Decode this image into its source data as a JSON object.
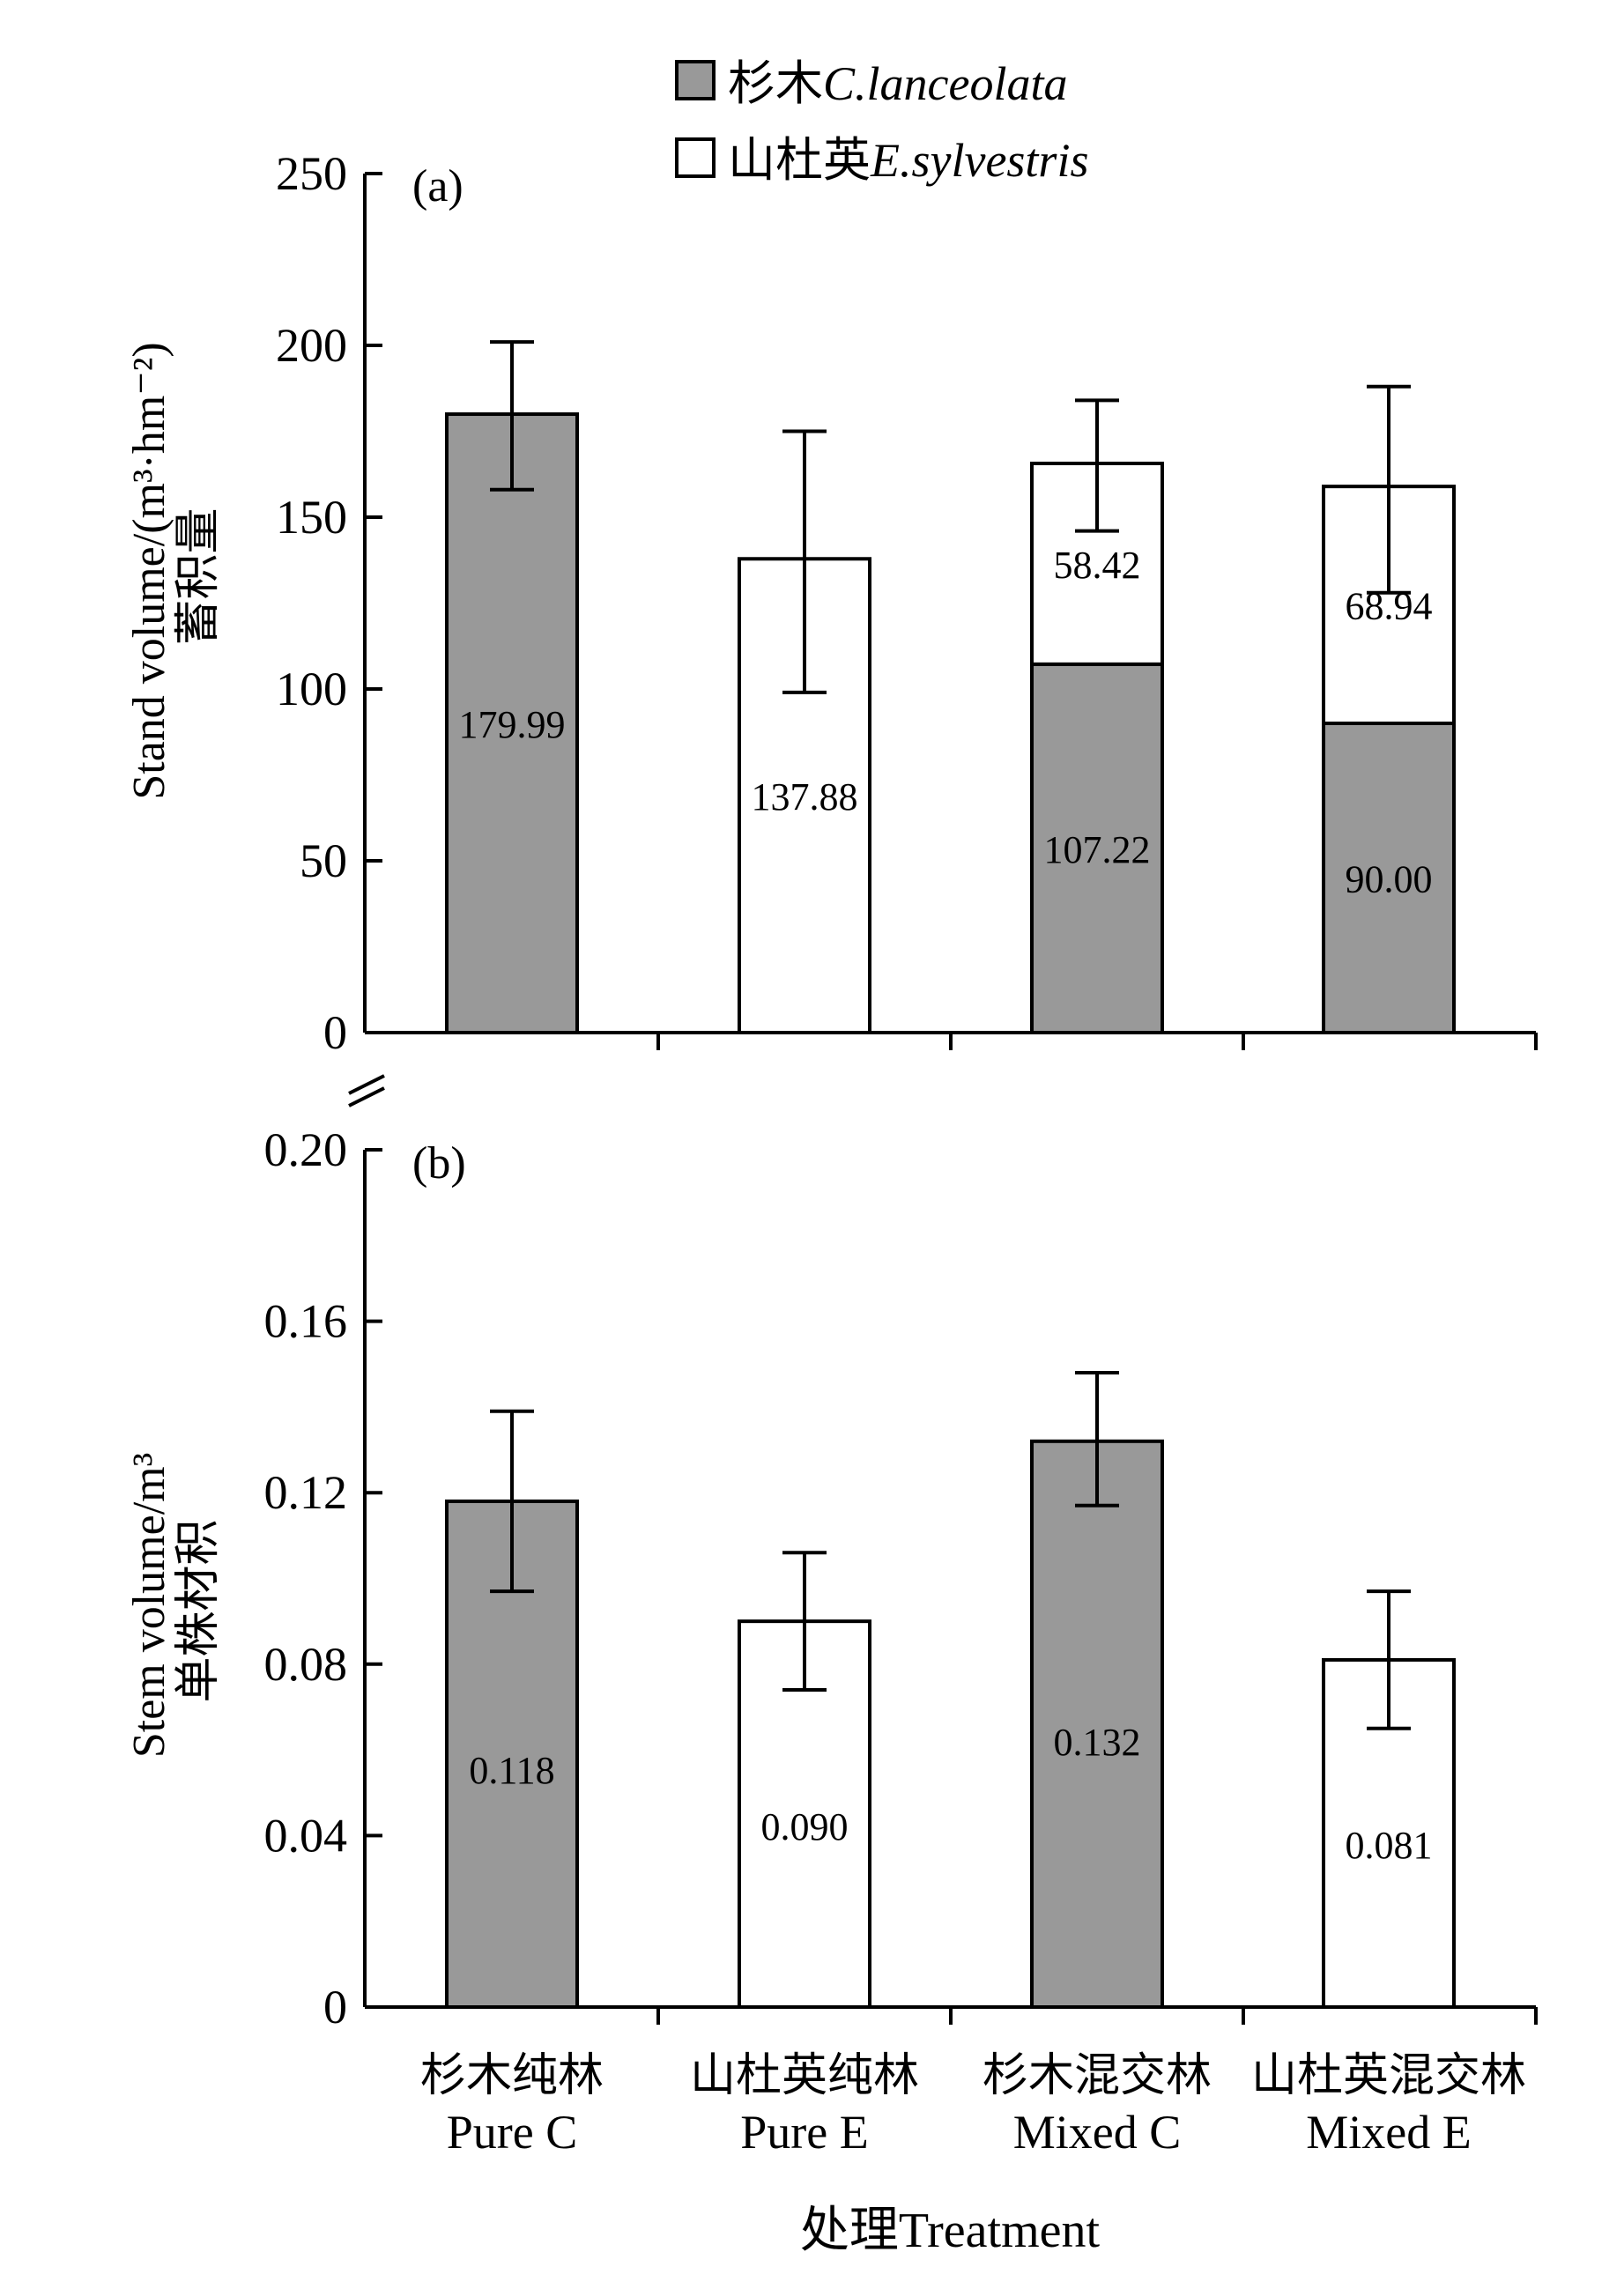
{
  "legend": {
    "items": [
      {
        "label_cn": "杉木",
        "label_latin": "C.lanceolata",
        "color": "#999999"
      },
      {
        "label_cn": "山杜英",
        "label_latin": "E.sylvestris",
        "color": "#ffffff"
      }
    ]
  },
  "xlabel": "处理Treatment",
  "treatments": [
    {
      "cn": "杉木纯林",
      "en": "Pure C"
    },
    {
      "cn": "山杜英纯林",
      "en": "Pure E"
    },
    {
      "cn": "杉木混交林",
      "en": "Mixed C"
    },
    {
      "cn": "山杜英混交林",
      "en": "Mixed E"
    }
  ],
  "chart_data": [
    {
      "type": "bar",
      "stacked": true,
      "panel_label": "(a)",
      "ylabel_cn": "蓄积量",
      "ylabel_en": "Stand volume/(m³·hm⁻²)",
      "ylim": [
        0,
        250
      ],
      "yticks": [
        0,
        50,
        100,
        150,
        200,
        250
      ],
      "ytick_labels": [
        "0",
        "50",
        "100",
        "150",
        "200",
        "250"
      ],
      "categories": [
        "Pure C",
        "Pure E",
        "Mixed C",
        "Mixed E"
      ],
      "series": [
        {
          "name": "杉木C.lanceolata",
          "color": "#999999",
          "values": [
            179.99,
            0,
            107.22,
            90.0
          ],
          "labels": [
            "179.99",
            "",
            "107.22",
            "90.00"
          ]
        },
        {
          "name": "山杜英E.sylvestris",
          "color": "#ffffff",
          "values": [
            0,
            137.88,
            58.42,
            68.94
          ],
          "labels": [
            "",
            "137.88",
            "58.42",
            "68.94"
          ]
        }
      ],
      "error_bars": [
        {
          "center": 179.99,
          "low": 158,
          "high": 201
        },
        {
          "center": 137.88,
          "low": 99,
          "high": 175
        },
        {
          "center": 165.64,
          "low": 146,
          "high": 184
        },
        {
          "center": 158.94,
          "low": 128,
          "high": 188
        }
      ]
    },
    {
      "type": "bar",
      "panel_label": "(b)",
      "ylabel_cn": "单株材积",
      "ylabel_en": "Stem volume/m³",
      "ylim": [
        0,
        0.2
      ],
      "yticks": [
        0,
        0.04,
        0.08,
        0.12,
        0.16,
        0.2
      ],
      "ytick_labels": [
        "0",
        "0.04",
        "0.08",
        "0.12",
        "0.16",
        "0.20"
      ],
      "categories": [
        "Pure C",
        "Pure E",
        "Mixed C",
        "Mixed E"
      ],
      "values": [
        0.118,
        0.09,
        0.132,
        0.081
      ],
      "labels": [
        "0.118",
        "0.090",
        "0.132",
        "0.081"
      ],
      "colors": [
        "#999999",
        "#ffffff",
        "#999999",
        "#ffffff"
      ],
      "error_bars": [
        {
          "low": 0.097,
          "high": 0.139
        },
        {
          "low": 0.074,
          "high": 0.106
        },
        {
          "low": 0.117,
          "high": 0.148
        },
        {
          "low": 0.065,
          "high": 0.097
        }
      ]
    }
  ]
}
